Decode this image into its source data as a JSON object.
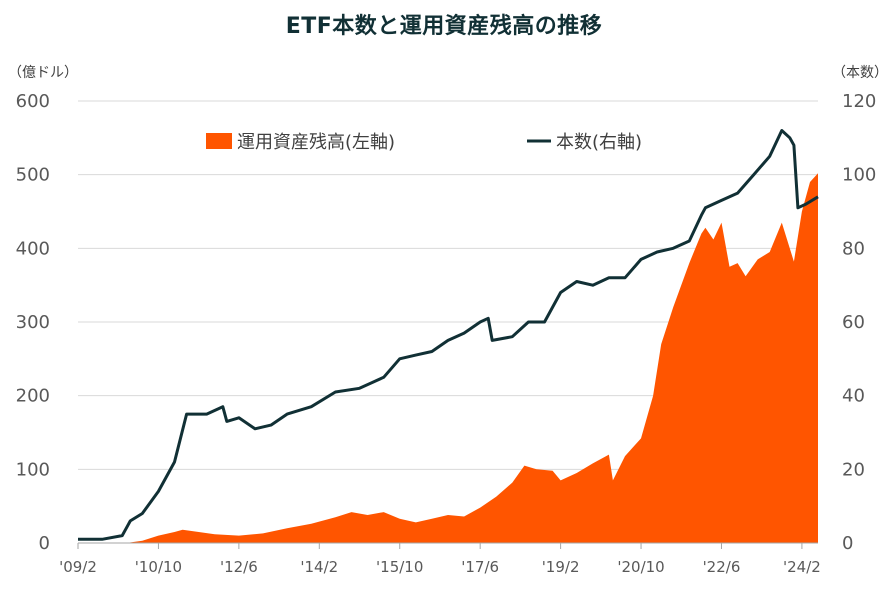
{
  "chart_data": {
    "type": "area",
    "title": "ETF本数と運用資産残高の推移",
    "left_axis_unit": "（億ドル）",
    "right_axis_unit": "（本数）",
    "ylim_left": [
      0,
      600
    ],
    "yticks_left": [
      0,
      100,
      200,
      300,
      400,
      500,
      600
    ],
    "ylim_right": [
      0,
      120
    ],
    "yticks_right": [
      0,
      20,
      40,
      60,
      80,
      100,
      120
    ],
    "x_range": [
      "2009-02",
      "2024-06"
    ],
    "x_ticks": [
      {
        "date": "2009-02",
        "label": "'09/2"
      },
      {
        "date": "2010-10",
        "label": "'10/10"
      },
      {
        "date": "2012-06",
        "label": "'12/6"
      },
      {
        "date": "2014-02",
        "label": "'14/2"
      },
      {
        "date": "2015-10",
        "label": "'15/10"
      },
      {
        "date": "2017-06",
        "label": "'17/6"
      },
      {
        "date": "2019-02",
        "label": "'19/2"
      },
      {
        "date": "2020-10",
        "label": "'20/10"
      },
      {
        "date": "2022-06",
        "label": "'22/6"
      },
      {
        "date": "2024-02",
        "label": "'24/2"
      }
    ],
    "grid": "horizontal",
    "legend": "top",
    "series": [
      {
        "name": "運用資産残高(左軸)",
        "kind": "area",
        "axis": "left",
        "color": "#FF5500",
        "points": [
          [
            "2009-02",
            0
          ],
          [
            "2010-02",
            0
          ],
          [
            "2010-06",
            3
          ],
          [
            "2010-10",
            10
          ],
          [
            "2011-02",
            15
          ],
          [
            "2011-04",
            18
          ],
          [
            "2011-08",
            15
          ],
          [
            "2011-12",
            12
          ],
          [
            "2012-06",
            10
          ],
          [
            "2012-12",
            13
          ],
          [
            "2013-06",
            20
          ],
          [
            "2013-12",
            26
          ],
          [
            "2014-06",
            35
          ],
          [
            "2014-10",
            42
          ],
          [
            "2015-02",
            38
          ],
          [
            "2015-06",
            42
          ],
          [
            "2015-10",
            33
          ],
          [
            "2016-02",
            28
          ],
          [
            "2016-06",
            33
          ],
          [
            "2016-10",
            38
          ],
          [
            "2017-02",
            36
          ],
          [
            "2017-06",
            48
          ],
          [
            "2017-10",
            63
          ],
          [
            "2018-02",
            82
          ],
          [
            "2018-05",
            105
          ],
          [
            "2018-08",
            100
          ],
          [
            "2018-12",
            98
          ],
          [
            "2019-02",
            85
          ],
          [
            "2019-06",
            95
          ],
          [
            "2019-10",
            108
          ],
          [
            "2020-02",
            120
          ],
          [
            "2020-03",
            85
          ],
          [
            "2020-06",
            118
          ],
          [
            "2020-10",
            142
          ],
          [
            "2021-01",
            200
          ],
          [
            "2021-03",
            270
          ],
          [
            "2021-06",
            320
          ],
          [
            "2021-10",
            380
          ],
          [
            "2022-01",
            420
          ],
          [
            "2022-02",
            428
          ],
          [
            "2022-04",
            412
          ],
          [
            "2022-06",
            435
          ],
          [
            "2022-08",
            375
          ],
          [
            "2022-10",
            380
          ],
          [
            "2022-12",
            362
          ],
          [
            "2023-03",
            385
          ],
          [
            "2023-06",
            395
          ],
          [
            "2023-09",
            435
          ],
          [
            "2023-12",
            382
          ],
          [
            "2024-02",
            450
          ],
          [
            "2024-04",
            490
          ],
          [
            "2024-06",
            502
          ]
        ]
      },
      {
        "name": "本数(右軸)",
        "kind": "line",
        "axis": "right",
        "color": "#113035",
        "points": [
          [
            "2009-02",
            1
          ],
          [
            "2009-08",
            1
          ],
          [
            "2010-01",
            2
          ],
          [
            "2010-03",
            6
          ],
          [
            "2010-06",
            8
          ],
          [
            "2010-10",
            14
          ],
          [
            "2011-02",
            22
          ],
          [
            "2011-05",
            35
          ],
          [
            "2011-10",
            35
          ],
          [
            "2012-02",
            37
          ],
          [
            "2012-03",
            33
          ],
          [
            "2012-06",
            34
          ],
          [
            "2012-10",
            31
          ],
          [
            "2013-02",
            32
          ],
          [
            "2013-06",
            35
          ],
          [
            "2013-12",
            37
          ],
          [
            "2014-06",
            41
          ],
          [
            "2014-12",
            42
          ],
          [
            "2015-06",
            45
          ],
          [
            "2015-10",
            50
          ],
          [
            "2016-02",
            51
          ],
          [
            "2016-06",
            52
          ],
          [
            "2016-10",
            55
          ],
          [
            "2017-02",
            57
          ],
          [
            "2017-06",
            60
          ],
          [
            "2017-08",
            61
          ],
          [
            "2017-09",
            55
          ],
          [
            "2018-02",
            56
          ],
          [
            "2018-06",
            60
          ],
          [
            "2018-10",
            60
          ],
          [
            "2019-02",
            68
          ],
          [
            "2019-06",
            71
          ],
          [
            "2019-10",
            70
          ],
          [
            "2020-02",
            72
          ],
          [
            "2020-06",
            72
          ],
          [
            "2020-10",
            77
          ],
          [
            "2021-02",
            79
          ],
          [
            "2021-06",
            80
          ],
          [
            "2021-10",
            82
          ],
          [
            "2022-01",
            89
          ],
          [
            "2022-02",
            91
          ],
          [
            "2022-06",
            93
          ],
          [
            "2022-10",
            95
          ],
          [
            "2023-02",
            100
          ],
          [
            "2023-06",
            105
          ],
          [
            "2023-09",
            112
          ],
          [
            "2023-11",
            110
          ],
          [
            "2023-12",
            108
          ],
          [
            "2024-01",
            91
          ],
          [
            "2024-03",
            92
          ],
          [
            "2024-06",
            94
          ]
        ]
      }
    ]
  }
}
